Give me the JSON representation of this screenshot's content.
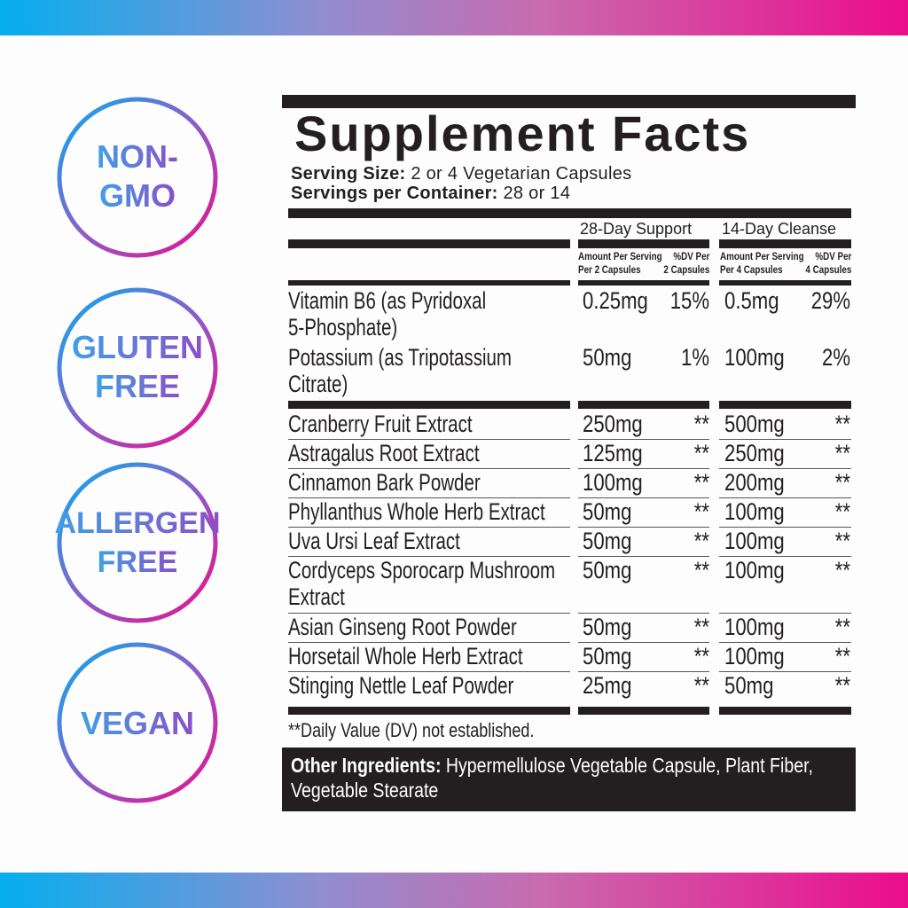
{
  "badges": [
    {
      "lines": [
        "NON-",
        "GMO"
      ]
    },
    {
      "lines": [
        "GLUTEN",
        "FREE"
      ]
    },
    {
      "lines": [
        "ALLERGEN",
        "FREE"
      ]
    },
    {
      "lines": [
        "VEGAN"
      ]
    }
  ],
  "colors": {
    "gradient_start": "#05aeef",
    "gradient_mid": "#8f8ed0",
    "gradient_end": "#ec0c8c",
    "label_black": "#231f20"
  },
  "label": {
    "title": "Supplement Facts",
    "serving_size_label": "Serving Size:",
    "serving_size_value": " 2 or 4 Vegetarian Capsules",
    "servings_label": "Servings per Container:",
    "servings_value": " 28 or 14",
    "col1_title": "28-Day Support",
    "col2_title": "14-Day Cleanse",
    "col1_amount_header": [
      "Amount Per Serving",
      "Per 2 Capsules"
    ],
    "col1_dv_header": [
      "%DV Per",
      "2 Capsules"
    ],
    "col2_amount_header": [
      "Amount Per Serving",
      "Per 4 Capsules"
    ],
    "col2_dv_header": [
      "%DV Per",
      "4 Capsules"
    ],
    "vitamins": [
      {
        "name": [
          "Vitamin B6 (as Pyridoxal",
          "5-Phosphate)"
        ],
        "amt1": "0.25mg",
        "dv1": "15%",
        "amt2": "0.5mg",
        "dv2": "29%"
      },
      {
        "name": [
          "Potassium (as Tripotassium",
          "Citrate)"
        ],
        "amt1": "50mg",
        "dv1": "1%",
        "amt2": "100mg",
        "dv2": "2%"
      }
    ],
    "ingredients": [
      {
        "name": [
          "Cranberry Fruit Extract"
        ],
        "amt1": "250mg",
        "dv1": "**",
        "amt2": "500mg",
        "dv2": "**"
      },
      {
        "name": [
          "Astragalus Root Extract"
        ],
        "amt1": "125mg",
        "dv1": "**",
        "amt2": "250mg",
        "dv2": "**"
      },
      {
        "name": [
          "Cinnamon Bark Powder"
        ],
        "amt1": "100mg",
        "dv1": "**",
        "amt2": "200mg",
        "dv2": "**"
      },
      {
        "name": [
          "Phyllanthus Whole Herb Extract"
        ],
        "amt1": "50mg",
        "dv1": "**",
        "amt2": "100mg",
        "dv2": "**"
      },
      {
        "name": [
          "Uva Ursi Leaf Extract"
        ],
        "amt1": "50mg",
        "dv1": "**",
        "amt2": "100mg",
        "dv2": "**"
      },
      {
        "name": [
          "Cordyceps Sporocarp Mushroom",
          "Extract"
        ],
        "amt1": "50mg",
        "dv1": "**",
        "amt2": "100mg",
        "dv2": "**"
      },
      {
        "name": [
          "Asian Ginseng Root Powder"
        ],
        "amt1": "50mg",
        "dv1": "**",
        "amt2": "100mg",
        "dv2": "**"
      },
      {
        "name": [
          "Horsetail Whole Herb Extract"
        ],
        "amt1": "50mg",
        "dv1": "**",
        "amt2": "100mg",
        "dv2": "**"
      },
      {
        "name": [
          "Stinging Nettle Leaf Powder"
        ],
        "amt1": "25mg",
        "dv1": "**",
        "amt2": "50mg",
        "dv2": "**"
      }
    ],
    "footnote": "**Daily Value (DV) not established.",
    "other_label": "Other Ingredients:",
    "other_value": " Hypermellulose Vegetable Capsule, Plant Fiber, Vegetable Stearate"
  }
}
